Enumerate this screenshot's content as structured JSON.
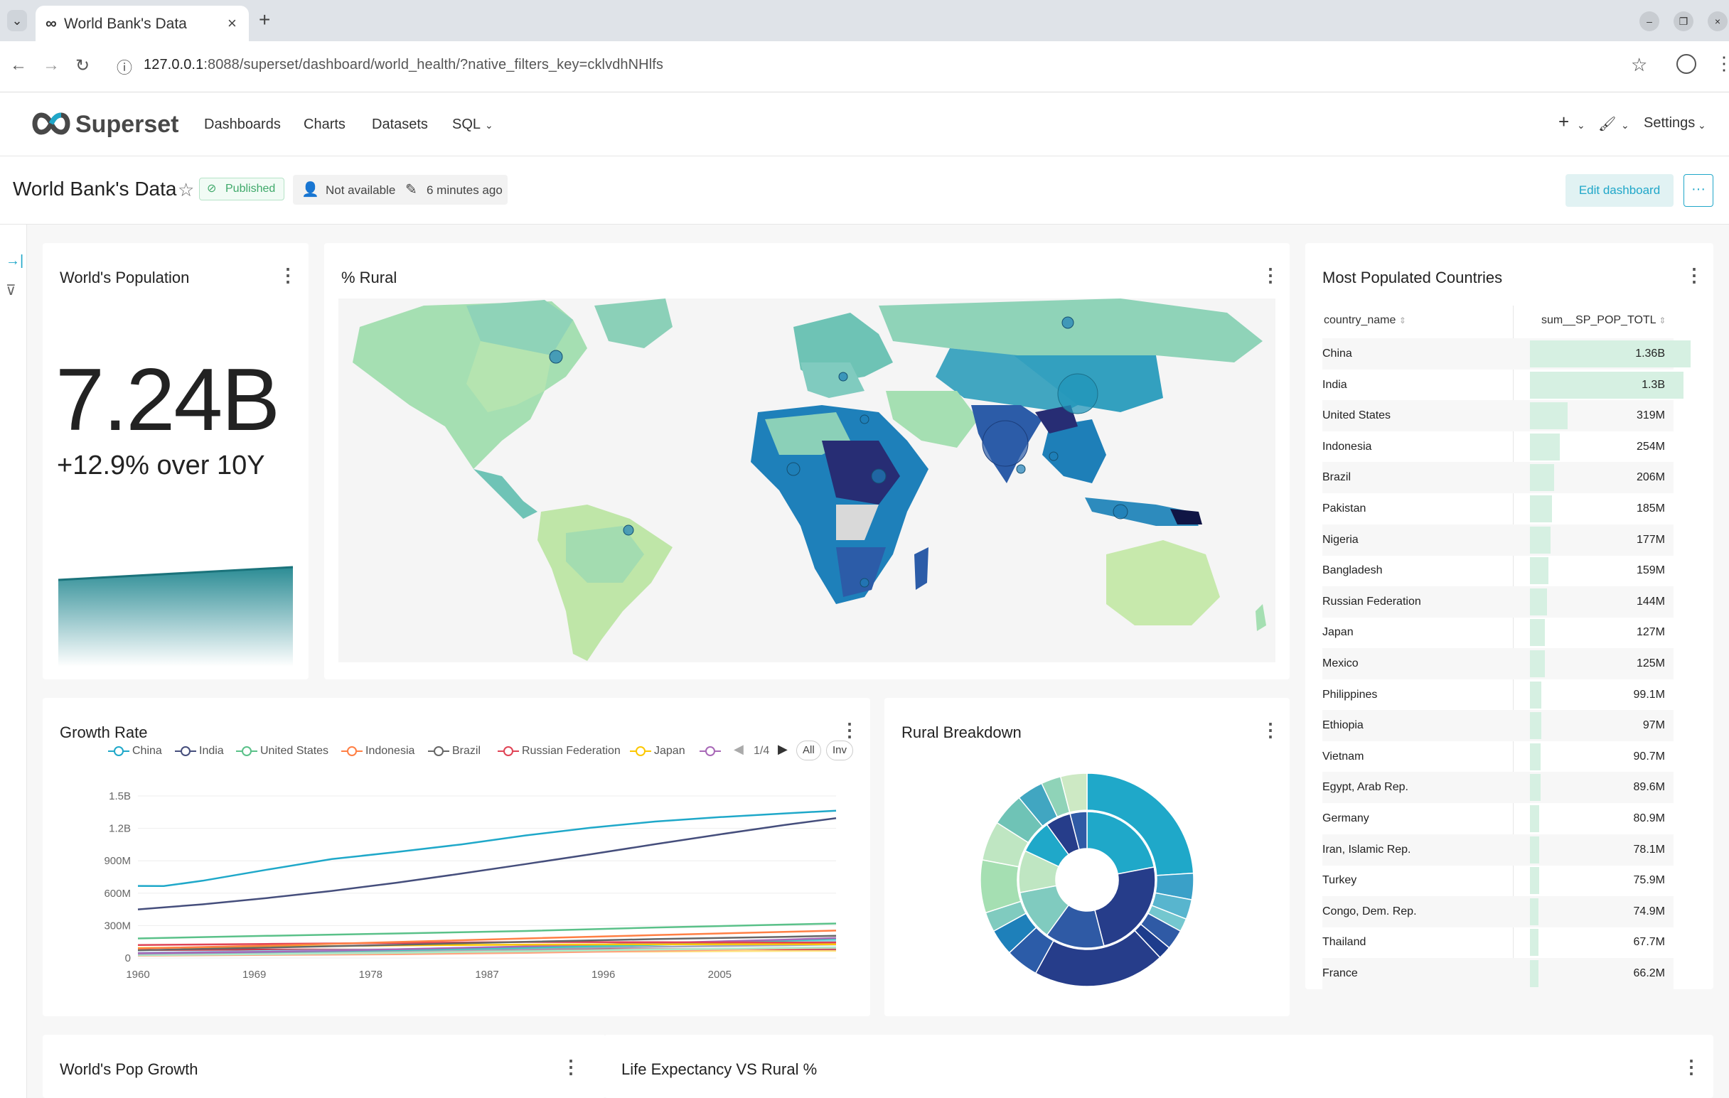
{
  "browser": {
    "tab_title": "World Bank's Data",
    "url_host": "127.0.0.1",
    "url_rest": ":8088/superset/dashboard/world_health/?native_filters_key=cklvdhNHlfs"
  },
  "navbar": {
    "brand": "Superset",
    "links": [
      "Dashboards",
      "Charts",
      "Datasets",
      "SQL"
    ],
    "settings": "Settings"
  },
  "header": {
    "title": "World Bank's Data",
    "status": "Published",
    "owner": "Not available",
    "modified": "6 minutes ago",
    "edit_label": "Edit dashboard"
  },
  "cards": {
    "population": {
      "title": "World's Population",
      "value": "7.24B",
      "subheader": "+12.9% over 10Y"
    },
    "rural": {
      "title": "% Rural"
    },
    "populated": {
      "title": "Most Populated Countries"
    },
    "growth": {
      "title": "Growth Rate"
    },
    "breakdown": {
      "title": "Rural Breakdown"
    },
    "popgrowth": {
      "title": "World's Pop Growth"
    },
    "lifeexp": {
      "title": "Life Expectancy VS Rural %"
    }
  },
  "table": {
    "columns": [
      "country_name",
      "sum__SP_POP_TOTL"
    ],
    "rows": [
      {
        "name": "China",
        "value": "1.36B",
        "num": 1.36
      },
      {
        "name": "India",
        "value": "1.3B",
        "num": 1.3
      },
      {
        "name": "United States",
        "value": "319M",
        "num": 0.319
      },
      {
        "name": "Indonesia",
        "value": "254M",
        "num": 0.254
      },
      {
        "name": "Brazil",
        "value": "206M",
        "num": 0.206
      },
      {
        "name": "Pakistan",
        "value": "185M",
        "num": 0.185
      },
      {
        "name": "Nigeria",
        "value": "177M",
        "num": 0.177
      },
      {
        "name": "Bangladesh",
        "value": "159M",
        "num": 0.159
      },
      {
        "name": "Russian Federation",
        "value": "144M",
        "num": 0.144
      },
      {
        "name": "Japan",
        "value": "127M",
        "num": 0.127
      },
      {
        "name": "Mexico",
        "value": "125M",
        "num": 0.125
      },
      {
        "name": "Philippines",
        "value": "99.1M",
        "num": 0.0991
      },
      {
        "name": "Ethiopia",
        "value": "97M",
        "num": 0.097
      },
      {
        "name": "Vietnam",
        "value": "90.7M",
        "num": 0.0907
      },
      {
        "name": "Egypt, Arab Rep.",
        "value": "89.6M",
        "num": 0.0896
      },
      {
        "name": "Germany",
        "value": "80.9M",
        "num": 0.0809
      },
      {
        "name": "Iran, Islamic Rep.",
        "value": "78.1M",
        "num": 0.0781
      },
      {
        "name": "Turkey",
        "value": "75.9M",
        "num": 0.0759
      },
      {
        "name": "Congo, Dem. Rep.",
        "value": "74.9M",
        "num": 0.0749
      },
      {
        "name": "Thailand",
        "value": "67.7M",
        "num": 0.0677
      },
      {
        "name": "France",
        "value": "66.2M",
        "num": 0.0662
      }
    ]
  },
  "legend": {
    "page": "1/4",
    "all": "All",
    "inv": "Inv"
  },
  "chart_data": {
    "type": "line",
    "x_ticks": [
      "1960",
      "1969",
      "1978",
      "1987",
      "1996",
      "2005"
    ],
    "y_ticks": [
      "0",
      "300M",
      "600M",
      "900M",
      "1.2B",
      "1.5B"
    ],
    "ylim": [
      0,
      1500000000
    ],
    "xlim": [
      1960,
      2014
    ],
    "series": [
      {
        "name": "China",
        "color": "#1fa8c9",
        "x": [
          1960,
          1962,
          1965,
          1970,
          1975,
          1980,
          1985,
          1990,
          1995,
          2000,
          2005,
          2010,
          2014
        ],
        "y": [
          667000000,
          666000000,
          715000000,
          818000000,
          916000000,
          981000000,
          1051000000,
          1135000000,
          1205000000,
          1263000000,
          1304000000,
          1338000000,
          1364000000
        ]
      },
      {
        "name": "India",
        "color": "#454e7c",
        "x": [
          1960,
          1965,
          1970,
          1975,
          1980,
          1985,
          1990,
          1995,
          2000,
          2005,
          2010,
          2014
        ],
        "y": [
          450000000,
          497000000,
          555000000,
          621000000,
          697000000,
          781000000,
          870000000,
          960000000,
          1053000000,
          1144000000,
          1231000000,
          1295000000
        ]
      },
      {
        "name": "United States",
        "color": "#5ac189",
        "x": [
          1960,
          1970,
          1980,
          1990,
          2000,
          2010,
          2014
        ],
        "y": [
          181000000,
          205000000,
          227000000,
          250000000,
          282000000,
          309000000,
          319000000
        ]
      },
      {
        "name": "Indonesia",
        "color": "#ff7f44",
        "x": [
          1960,
          1970,
          1980,
          1990,
          2000,
          2010,
          2014
        ],
        "y": [
          88000000,
          115000000,
          148000000,
          181000000,
          212000000,
          242000000,
          254000000
        ]
      },
      {
        "name": "Brazil",
        "color": "#666666",
        "x": [
          1960,
          1970,
          1980,
          1990,
          2000,
          2010,
          2014
        ],
        "y": [
          72000000,
          96000000,
          122000000,
          150000000,
          175000000,
          196000000,
          206000000
        ]
      },
      {
        "name": "Russian Federation",
        "color": "#e04355",
        "x": [
          1960,
          1970,
          1980,
          1990,
          2000,
          2010,
          2014
        ],
        "y": [
          120000000,
          130000000,
          139000000,
          148000000,
          146000000,
          143000000,
          144000000
        ]
      },
      {
        "name": "Japan",
        "color": "#fcc700",
        "x": [
          1960,
          1970,
          1980,
          1990,
          2000,
          2010,
          2014
        ],
        "y": [
          92000000,
          104000000,
          117000000,
          124000000,
          127000000,
          128000000,
          127000000
        ]
      },
      {
        "name": "",
        "color": "#a868b7",
        "x": [
          1960,
          1970,
          1980,
          1990,
          2000,
          2010,
          2014
        ],
        "y": [
          44000000,
          58000000,
          80000000,
          107000000,
          138000000,
          170000000,
          185000000
        ]
      },
      {
        "name": "",
        "color": "#3cccbb",
        "x": [
          1960,
          1970,
          1980,
          1990,
          2000,
          2010,
          2014
        ],
        "y": [
          45000000,
          56000000,
          73000000,
          95000000,
          122000000,
          159000000,
          177000000
        ]
      },
      {
        "name": "",
        "color": "#8fd3e4",
        "x": [
          1960,
          1970,
          1980,
          1990,
          2000,
          2010,
          2014
        ],
        "y": [
          48000000,
          65000000,
          80000000,
          106000000,
          131000000,
          151000000,
          159000000
        ]
      },
      {
        "name": "",
        "color": "#a1a6bd",
        "x": [
          1960,
          1970,
          1980,
          1990,
          2000,
          2010,
          2014
        ],
        "y": [
          38000000,
          52000000,
          69000000,
          85000000,
          103000000,
          118000000,
          125000000
        ]
      },
      {
        "name": "",
        "color": "#acebc9",
        "x": [
          1960,
          1970,
          1980,
          1990,
          2000,
          2010,
          2014
        ],
        "y": [
          26000000,
          36000000,
          48000000,
          62000000,
          78000000,
          93000000,
          99000000
        ]
      },
      {
        "name": "",
        "color": "#ffa37f",
        "x": [
          1960,
          1970,
          1980,
          1990,
          2000,
          2010,
          2014
        ],
        "y": [
          22000000,
          29000000,
          35000000,
          48000000,
          66000000,
          87000000,
          97000000
        ]
      },
      {
        "name": "",
        "color": "#b2b2b2",
        "x": [
          1960,
          1970,
          1980,
          1990,
          2000,
          2010,
          2014
        ],
        "y": [
          32000000,
          43000000,
          54000000,
          68000000,
          80000000,
          88000000,
          91000000
        ]
      },
      {
        "name": "",
        "color": "#c9364c",
        "x": [
          1960,
          1970,
          1980,
          1990,
          2000,
          2010,
          2014
        ],
        "y": [
          73000000,
          78000000,
          78000000,
          79000000,
          82000000,
          81000000,
          81000000
        ]
      },
      {
        "name": "",
        "color": "#fde380",
        "x": [
          1960,
          1970,
          1980,
          1990,
          2000,
          2010,
          2014
        ],
        "y": [
          46000000,
          52000000,
          54000000,
          57000000,
          59000000,
          65000000,
          66000000
        ]
      }
    ]
  },
  "sunburst": {
    "colors_inner": [
      "#1fa8c9",
      "#263d8a",
      "#2f5aa5",
      "#80cbbf",
      "#bfe6c2"
    ],
    "inner": [
      0.22,
      0.24,
      0.14,
      0.12,
      0.1,
      0.08,
      0.06,
      0.04
    ],
    "outer": [
      0.24,
      0.04,
      0.03,
      0.02,
      0.03,
      0.02,
      0.2,
      0.05,
      0.04,
      0.03,
      0.08,
      0.06,
      0.05,
      0.04,
      0.03,
      0.04
    ]
  }
}
